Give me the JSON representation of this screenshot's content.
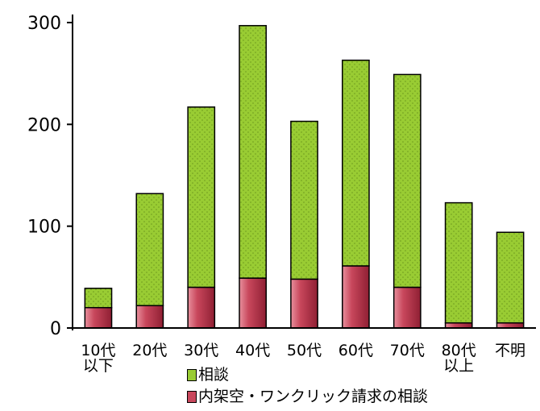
{
  "chart_data": {
    "type": "bar",
    "stacked": true,
    "categories": [
      "10代以下",
      "20代",
      "30代",
      "40代",
      "50代",
      "60代",
      "70代",
      "80代以上",
      "不明"
    ],
    "category_lines": [
      [
        "10代",
        "以下"
      ],
      [
        "20代"
      ],
      [
        "30代"
      ],
      [
        "40代"
      ],
      [
        "50代"
      ],
      [
        "60代"
      ],
      [
        "70代"
      ],
      [
        "80代",
        "以上"
      ],
      [
        "不明"
      ]
    ],
    "series": [
      {
        "name": "内架空・ワンクリック請求の相談",
        "color": "#c8475c",
        "values": [
          20,
          22,
          40,
          49,
          48,
          61,
          40,
          5,
          5
        ]
      },
      {
        "name": "相談",
        "color": "#99cc33",
        "values": [
          19,
          110,
          177,
          248,
          155,
          202,
          209,
          118,
          89
        ]
      }
    ],
    "totals": [
      39,
      132,
      217,
      297,
      203,
      263,
      249,
      123,
      94
    ],
    "ylim": [
      0,
      300
    ],
    "yticks": [
      0,
      100,
      200,
      300
    ],
    "title": "",
    "xlabel": "",
    "ylabel": "",
    "grid": false,
    "legend": [
      {
        "label": "相談",
        "color": "#99cc33"
      },
      {
        "label": "内架空・ワンクリック請求の相談",
        "color": "#c8475c"
      }
    ],
    "legend_position": "bottom"
  }
}
